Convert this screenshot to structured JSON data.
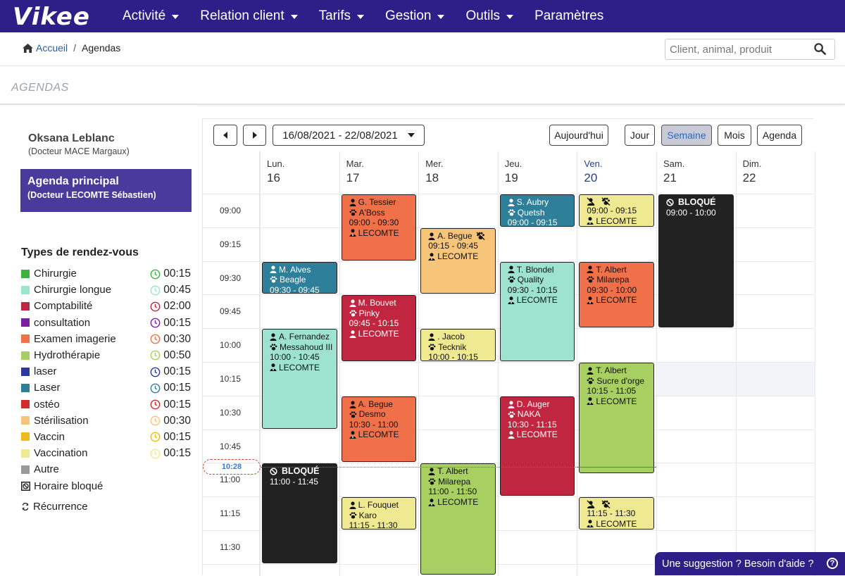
{
  "app": {
    "logo": "Vikee"
  },
  "nav": [
    "Activité",
    "Relation client",
    "Tarifs",
    "Gestion",
    "Outils",
    "Paramètres"
  ],
  "breadcrumb": {
    "home": "Accueil",
    "current": "Agendas"
  },
  "search": {
    "placeholder": "Client, animal, produit"
  },
  "page_title": "AGENDAS",
  "user": {
    "name": "Oksana Leblanc",
    "doctor": "(Docteur MACE Margaux)"
  },
  "agenda_main": {
    "title": "Agenda principal",
    "doctor": "(Docteur LECOMTE Sébastien)"
  },
  "types_title": "Types de rendez-vous",
  "types": [
    {
      "label": "Chirurgie",
      "color": "#3cb43c",
      "dur": "00:15"
    },
    {
      "label": "Chirurgie longue",
      "color": "#9de3d0",
      "dur": "00:45"
    },
    {
      "label": "Comptabilité",
      "color": "#c0263f",
      "dur": "02:00"
    },
    {
      "label": "consultation",
      "color": "#7b1fa2",
      "dur": "00:15"
    },
    {
      "label": "Examen imagerie",
      "color": "#f0704a",
      "dur": "00:30"
    },
    {
      "label": "Hydrothérapie",
      "color": "#a8cf62",
      "dur": "00:50"
    },
    {
      "label": "laser",
      "color": "#2b3aa0",
      "dur": "00:15"
    },
    {
      "label": "Laser",
      "color": "#2e7f99",
      "dur": "00:15"
    },
    {
      "label": "ostéo",
      "color": "#d42b2b",
      "dur": "00:15"
    },
    {
      "label": "Stérilisation",
      "color": "#f7c57a",
      "dur": "00:30"
    },
    {
      "label": "Vaccin",
      "color": "#f2b820",
      "dur": "00:15"
    },
    {
      "label": "Vaccination",
      "color": "#efe992",
      "dur": "00:15"
    },
    {
      "label": "Autre",
      "color": "#999999",
      "dur": ""
    }
  ],
  "legend_extra": {
    "blocked": "Horaire bloqué",
    "recurrence": "Récurrence"
  },
  "toolbar": {
    "date_range": "16/08/2021 - 22/08/2021",
    "today": "Aujourd'hui",
    "day": "Jour",
    "week": "Semaine",
    "month": "Mois",
    "agenda": "Agenda"
  },
  "days": [
    {
      "name": "Lun.",
      "num": "16"
    },
    {
      "name": "Mar.",
      "num": "17"
    },
    {
      "name": "Mer.",
      "num": "18"
    },
    {
      "name": "Jeu.",
      "num": "19"
    },
    {
      "name": "Ven.",
      "num": "20"
    },
    {
      "name": "Sam.",
      "num": "21"
    },
    {
      "name": "Dim.",
      "num": "22"
    }
  ],
  "times": [
    "09:00",
    "09:15",
    "09:30",
    "09:45",
    "10:00",
    "10:15",
    "10:30",
    "10:45",
    "11:00",
    "11:15",
    "11:30"
  ],
  "now_label": "10:28",
  "events": [
    {
      "day": 1,
      "start": "09:00",
      "end": "09:30",
      "color": "#f0704a",
      "client": "G. Tessier",
      "animal": "A'Boss",
      "time": "09:00 - 09:30",
      "vet": "LECOMTE"
    },
    {
      "day": 3,
      "start": "09:00",
      "end": "09:15",
      "color": "#2e7f99",
      "client": "S. Aubry",
      "animal": "Quetsh",
      "time": "09:00 - 09:15",
      "vet": "",
      "dark": true
    },
    {
      "day": 4,
      "start": "09:00",
      "end": "09:15",
      "color": "#efe992",
      "client": "",
      "animal": "",
      "time": "09:00 - 09:15",
      "vet": "LECOMTE",
      "icons": true
    },
    {
      "day": 5,
      "start": "09:00",
      "end": "10:00",
      "color": "#222222",
      "blocked": "BLOQUÉ",
      "time": "09:00 - 10:00",
      "dark": true
    },
    {
      "day": 2,
      "start": "09:15",
      "end": "09:45",
      "color": "#f7c57a",
      "client": "A. Begue",
      "animal": "",
      "time": "09:15 - 09:45",
      "vet": "LECOMTE",
      "noanimal": true
    },
    {
      "day": 0,
      "start": "09:30",
      "end": "09:45",
      "color": "#2e7f99",
      "client": "M. Alves",
      "animal": "Beagle",
      "time": "09:30 - 09:45",
      "vet": "",
      "dark": true
    },
    {
      "day": 3,
      "start": "09:30",
      "end": "10:15",
      "color": "#9de3d0",
      "client": "T. Blondel",
      "animal": "Quality",
      "time": "09:30 - 10:15",
      "vet": "LECOMTE"
    },
    {
      "day": 4,
      "start": "09:30",
      "end": "10:00",
      "color": "#f0704a",
      "client": "T. Albert",
      "animal": "Milarepa",
      "time": "09:30 - 10:00",
      "vet": "LECOMTE"
    },
    {
      "day": 1,
      "start": "09:45",
      "end": "10:15",
      "color": "#c0263f",
      "client": "M. Bouvet",
      "animal": "Pinky",
      "time": "09:45 - 10:15",
      "vet": "LECOMTE",
      "dark": true
    },
    {
      "day": 0,
      "start": "10:00",
      "end": "10:45",
      "color": "#9de3d0",
      "client": "A. Fernandez",
      "animal": "Messahoud III",
      "time": "10:00 - 10:45",
      "vet": "LECOMTE"
    },
    {
      "day": 2,
      "start": "10:00",
      "end": "10:15",
      "color": "#efe992",
      "client": ". Jacob",
      "animal": "Tecknik",
      "time": "10:00 - 10:15",
      "vet": ""
    },
    {
      "day": 4,
      "start": "10:15",
      "end": "11:05",
      "color": "#a8cf62",
      "client": "T. Albert",
      "animal": "Sucre d'orge",
      "time": "10:15 - 11:05",
      "vet": "LECOMTE"
    },
    {
      "day": 1,
      "start": "10:30",
      "end": "11:00",
      "color": "#f0704a",
      "client": "A. Begue",
      "animal": "Desmo",
      "time": "10:30 - 11:00",
      "vet": "LECOMTE"
    },
    {
      "day": 3,
      "start": "10:30",
      "end": "11:15",
      "color": "#c0263f",
      "client": "D. Auger",
      "animal": "NAKA",
      "time": "10:30 - 11:15",
      "vet": "LECOMTE",
      "dark": true
    },
    {
      "day": 0,
      "start": "11:00",
      "end": "11:45",
      "color": "#222222",
      "blocked": "BLOQUÉ",
      "time": "11:00 - 11:45",
      "dark": true
    },
    {
      "day": 2,
      "start": "11:00",
      "end": "11:50",
      "color": "#a8cf62",
      "client": "T. Albert",
      "animal": "Milarepa",
      "time": "11:00 - 11:50",
      "vet": "LECOMTE"
    },
    {
      "day": 1,
      "start": "11:15",
      "end": "11:30",
      "color": "#efe992",
      "client": "L. Fouquet",
      "animal": "Karo",
      "time": "11:15 - 11:30",
      "vet": ""
    },
    {
      "day": 4,
      "start": "11:15",
      "end": "11:30",
      "color": "#efe992",
      "client": "",
      "animal": "",
      "time": "11:15 - 11:30",
      "vet": "LECOMTE",
      "icons": true
    }
  ],
  "help": "Une suggestion ? Besoin d'aide ?"
}
